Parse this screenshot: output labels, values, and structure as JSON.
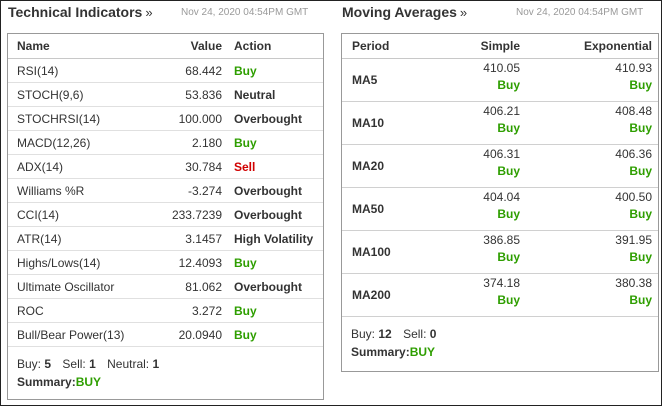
{
  "technical": {
    "title": "Technical Indicators",
    "arrow": "»",
    "date": "Nov 24, 2020 04:54PM GMT",
    "headers": {
      "name": "Name",
      "value": "Value",
      "action": "Action"
    },
    "rows": [
      {
        "name": "RSI(14)",
        "value": "68.442",
        "action": "Buy",
        "tone": "buy"
      },
      {
        "name": "STOCH(9,6)",
        "value": "53.836",
        "action": "Neutral",
        "tone": "neutral"
      },
      {
        "name": "STOCHRSI(14)",
        "value": "100.000",
        "action": "Overbought",
        "tone": "neutral"
      },
      {
        "name": "MACD(12,26)",
        "value": "2.180",
        "action": "Buy",
        "tone": "buy"
      },
      {
        "name": "ADX(14)",
        "value": "30.784",
        "action": "Sell",
        "tone": "sell"
      },
      {
        "name": "Williams %R",
        "value": "-3.274",
        "action": "Overbought",
        "tone": "neutral"
      },
      {
        "name": "CCI(14)",
        "value": "233.7239",
        "action": "Overbought",
        "tone": "neutral"
      },
      {
        "name": "ATR(14)",
        "value": "3.1457",
        "action": "High Volatility",
        "tone": "neutral"
      },
      {
        "name": "Highs/Lows(14)",
        "value": "12.4093",
        "action": "Buy",
        "tone": "buy"
      },
      {
        "name": "Ultimate Oscillator",
        "value": "81.062",
        "action": "Overbought",
        "tone": "neutral"
      },
      {
        "name": "ROC",
        "value": "3.272",
        "action": "Buy",
        "tone": "buy"
      },
      {
        "name": "Bull/Bear Power(13)",
        "value": "20.0940",
        "action": "Buy",
        "tone": "buy"
      }
    ],
    "counts": {
      "buy_label": "Buy:",
      "buy": "5",
      "sell_label": "Sell:",
      "sell": "1",
      "neutral_label": "Neutral:",
      "neutral": "1"
    },
    "summary": {
      "label": "Summary:",
      "value": "BUY"
    }
  },
  "moving": {
    "title": "Moving Averages",
    "arrow": "»",
    "date": "Nov 24, 2020 04:54PM GMT",
    "headers": {
      "period": "Period",
      "simple": "Simple",
      "exponential": "Exponential"
    },
    "rows": [
      {
        "period": "MA5",
        "simple": "410.05",
        "simple_action": "Buy",
        "exp": "410.93",
        "exp_action": "Buy"
      },
      {
        "period": "MA10",
        "simple": "406.21",
        "simple_action": "Buy",
        "exp": "408.48",
        "exp_action": "Buy"
      },
      {
        "period": "MA20",
        "simple": "406.31",
        "simple_action": "Buy",
        "exp": "406.36",
        "exp_action": "Buy"
      },
      {
        "period": "MA50",
        "simple": "404.04",
        "simple_action": "Buy",
        "exp": "400.50",
        "exp_action": "Buy"
      },
      {
        "period": "MA100",
        "simple": "386.85",
        "simple_action": "Buy",
        "exp": "391.95",
        "exp_action": "Buy"
      },
      {
        "period": "MA200",
        "simple": "374.18",
        "simple_action": "Buy",
        "exp": "380.38",
        "exp_action": "Buy"
      }
    ],
    "counts": {
      "buy_label": "Buy:",
      "buy": "12",
      "sell_label": "Sell:",
      "sell": "0"
    },
    "summary": {
      "label": "Summary:",
      "value": "BUY"
    }
  },
  "colors": {
    "buy": "#2e9e00",
    "sell": "#d10000",
    "neutral": "#333333",
    "date": "#999999"
  }
}
